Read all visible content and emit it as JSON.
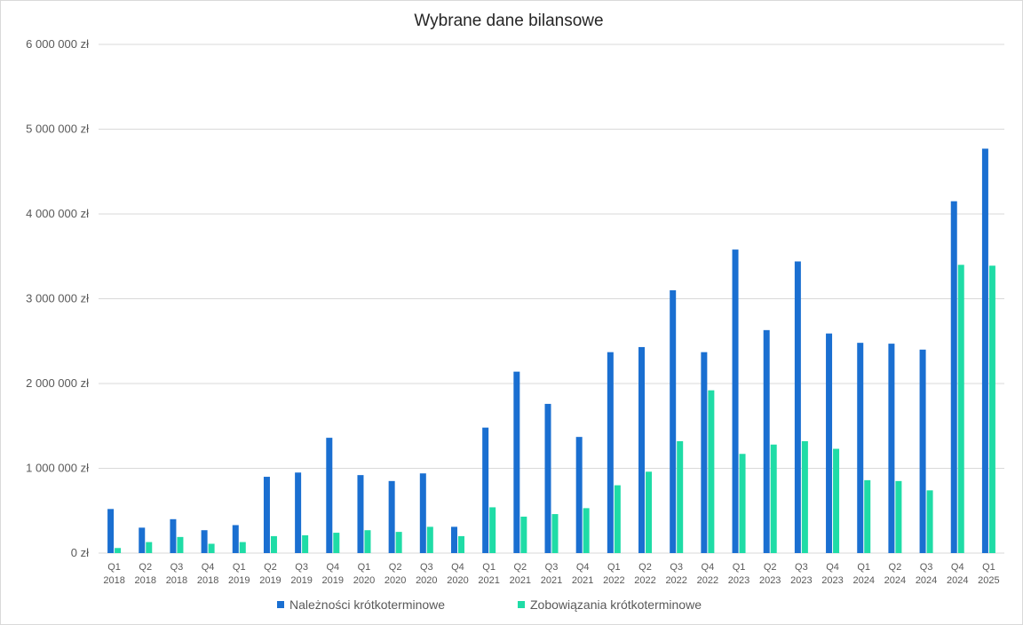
{
  "chart_data": {
    "type": "bar",
    "title": "Wybrane dane bilansowe",
    "xlabel": "",
    "ylabel": "",
    "ylim": [
      0,
      6000000
    ],
    "yticks": [
      0,
      1000000,
      2000000,
      3000000,
      4000000,
      5000000,
      6000000
    ],
    "ytick_labels": [
      "0 zł",
      "1 000 000 zł",
      "2 000 000 zł",
      "3 000 000 zł",
      "4 000 000 zł",
      "5 000 000 zł",
      "6 000 000 zł"
    ],
    "grid": true,
    "legend_position": "bottom",
    "categories": [
      [
        "Q1",
        "2018"
      ],
      [
        "Q2",
        "2018"
      ],
      [
        "Q3",
        "2018"
      ],
      [
        "Q4",
        "2018"
      ],
      [
        "Q1",
        "2019"
      ],
      [
        "Q2",
        "2019"
      ],
      [
        "Q3",
        "2019"
      ],
      [
        "Q4",
        "2019"
      ],
      [
        "Q1",
        "2020"
      ],
      [
        "Q2",
        "2020"
      ],
      [
        "Q3",
        "2020"
      ],
      [
        "Q4",
        "2020"
      ],
      [
        "Q1",
        "2021"
      ],
      [
        "Q2",
        "2021"
      ],
      [
        "Q3",
        "2021"
      ],
      [
        "Q4",
        "2021"
      ],
      [
        "Q1",
        "2022"
      ],
      [
        "Q2",
        "2022"
      ],
      [
        "Q3",
        "2022"
      ],
      [
        "Q4",
        "2022"
      ],
      [
        "Q1",
        "2023"
      ],
      [
        "Q2",
        "2023"
      ],
      [
        "Q3",
        "2023"
      ],
      [
        "Q4",
        "2023"
      ],
      [
        "Q1",
        "2024"
      ],
      [
        "Q2",
        "2024"
      ],
      [
        "Q3",
        "2024"
      ],
      [
        "Q4",
        "2024"
      ],
      [
        "Q1",
        "2025"
      ]
    ],
    "series": [
      {
        "name": "Należności krótkoterminowe",
        "color": "#1a6fd1",
        "values": [
          520000,
          300000,
          400000,
          270000,
          330000,
          900000,
          950000,
          1360000,
          920000,
          850000,
          940000,
          310000,
          1480000,
          2140000,
          1760000,
          1370000,
          2370000,
          2430000,
          3100000,
          2370000,
          3580000,
          2630000,
          3440000,
          2590000,
          2480000,
          2470000,
          2400000,
          4150000,
          4770000
        ]
      },
      {
        "name": "Zobowiązania krótkoterminowe",
        "color": "#1fdca6",
        "values": [
          60000,
          130000,
          190000,
          110000,
          130000,
          200000,
          210000,
          240000,
          270000,
          250000,
          310000,
          200000,
          540000,
          430000,
          460000,
          530000,
          800000,
          960000,
          1320000,
          1920000,
          1170000,
          1280000,
          1320000,
          1230000,
          860000,
          850000,
          740000,
          3400000,
          3390000
        ]
      }
    ]
  }
}
